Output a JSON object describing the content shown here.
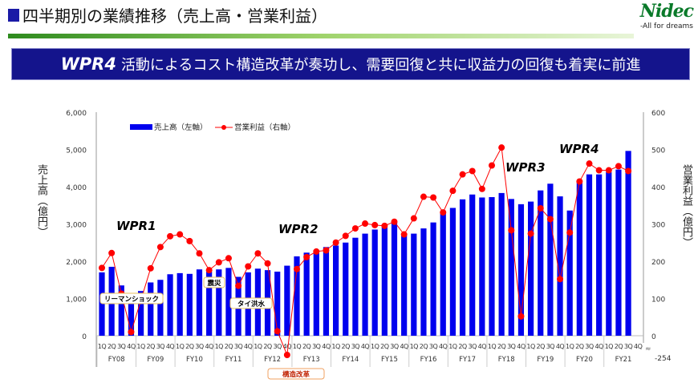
{
  "header": {
    "title": "四半期別の業績推移（売上高・営業利益）",
    "logo": "Nidec",
    "tagline": "-All for dreams"
  },
  "banner": {
    "highlight": "WPR4",
    "text": "活動によるコスト構造改革が奏功し、需要回復と共に収益力の回復も着実に前進"
  },
  "colors": {
    "bars": "#0000ee",
    "line": "#ff0000",
    "banner": "#14148c"
  },
  "chart_data": {
    "type": "bar+line",
    "ylabel_left": "売上高（億円）",
    "ylabel_right": "営業利益（億円）",
    "ylim_left": [
      0,
      6000
    ],
    "ylim_right": [
      0,
      600
    ],
    "yticks_left": [
      "0",
      "1,000",
      "2,000",
      "3,000",
      "4,000",
      "5,000",
      "6,000"
    ],
    "yticks_right": [
      "0",
      "100",
      "200",
      "300",
      "400",
      "500",
      "600"
    ],
    "right_axis_break_label": "-254",
    "legend": {
      "position": "top-left",
      "bar": "売上高（左軸）",
      "line": "営業利益（右軸）"
    },
    "years": [
      "FY08",
      "FY09",
      "FY10",
      "FY11",
      "FY12",
      "FY13",
      "FY14",
      "FY15",
      "FY16",
      "FY17",
      "FY18",
      "FY19",
      "FY20",
      "FY21"
    ],
    "quarters": [
      "1Q",
      "2Q",
      "3Q",
      "4Q"
    ],
    "series": [
      {
        "name": "売上高（左軸）",
        "type": "bar",
        "axis": "left",
        "values": [
          1700,
          1850,
          1350,
          1000,
          1200,
          1430,
          1500,
          1650,
          1680,
          1660,
          1780,
          1720,
          1780,
          1820,
          1580,
          1700,
          1800,
          1760,
          1720,
          1880,
          2130,
          2230,
          2300,
          2380,
          2420,
          2500,
          2630,
          2740,
          2850,
          2950,
          3060,
          2740,
          2740,
          2880,
          3040,
          3310,
          3430,
          3660,
          3790,
          3710,
          3720,
          3830,
          3670,
          3530,
          3600,
          3900,
          4080,
          3740,
          3360,
          4140,
          4330,
          4330,
          4390,
          4460,
          4960
        ]
      },
      {
        "name": "営業利益（右軸）",
        "type": "line",
        "axis": "right",
        "values": [
          182,
          222,
          113,
          10,
          95,
          181,
          238,
          267,
          272,
          254,
          221,
          176,
          197,
          208,
          134,
          186,
          221,
          194,
          12,
          -254,
          179,
          211,
          226,
          229,
          250,
          268,
          288,
          301,
          297,
          295,
          306,
          272,
          315,
          373,
          371,
          331,
          389,
          433,
          442,
          394,
          457,
          505,
          283,
          52,
          274,
          342,
          313,
          152,
          277,
          414,
          462,
          444,
          444,
          455,
          442
        ]
      }
    ],
    "annotations": [
      "WPR1",
      "WPR2",
      "WPR3",
      "WPR4",
      "リーマンショック",
      "震災",
      "タイ洪水",
      "構造改革"
    ]
  }
}
